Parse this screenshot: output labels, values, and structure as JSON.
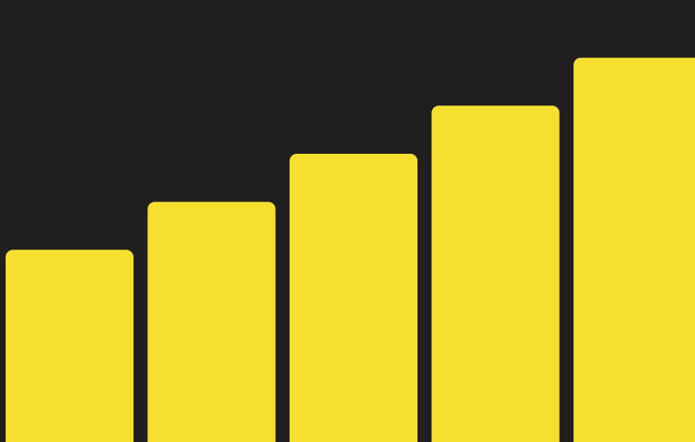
{
  "colors": {
    "background": "#202020",
    "bar": "#F5E02F"
  },
  "chart_data": {
    "type": "bar",
    "categories": [
      "",
      "",
      "",
      "",
      ""
    ],
    "values": [
      1,
      2,
      3,
      4,
      5
    ],
    "ylim": [
      -3,
      6
    ],
    "grid": false,
    "title": "",
    "xlabel": "",
    "ylabel": ""
  }
}
